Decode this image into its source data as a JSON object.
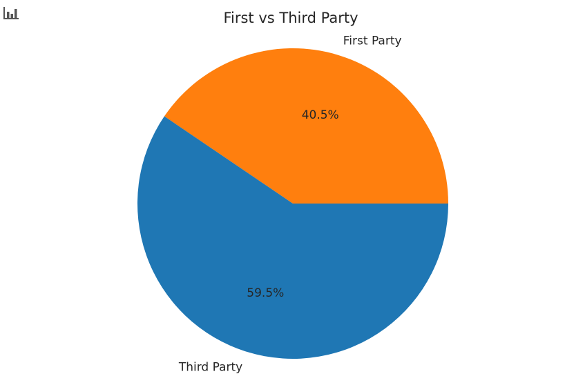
{
  "toolbar": {
    "chart_icon": "bar-chart-icon"
  },
  "colors": {
    "Third Party": "#1f77b4",
    "First Party": "#ff7f0e"
  },
  "chart_data": {
    "type": "pie",
    "title": "First vs Third Party",
    "categories": [
      "First Party",
      "Third Party"
    ],
    "values": [
      40.5,
      59.5
    ],
    "value_labels": [
      "40.5%",
      "59.5%"
    ],
    "start_angle_deg": 0,
    "direction": "counterclockwise"
  }
}
